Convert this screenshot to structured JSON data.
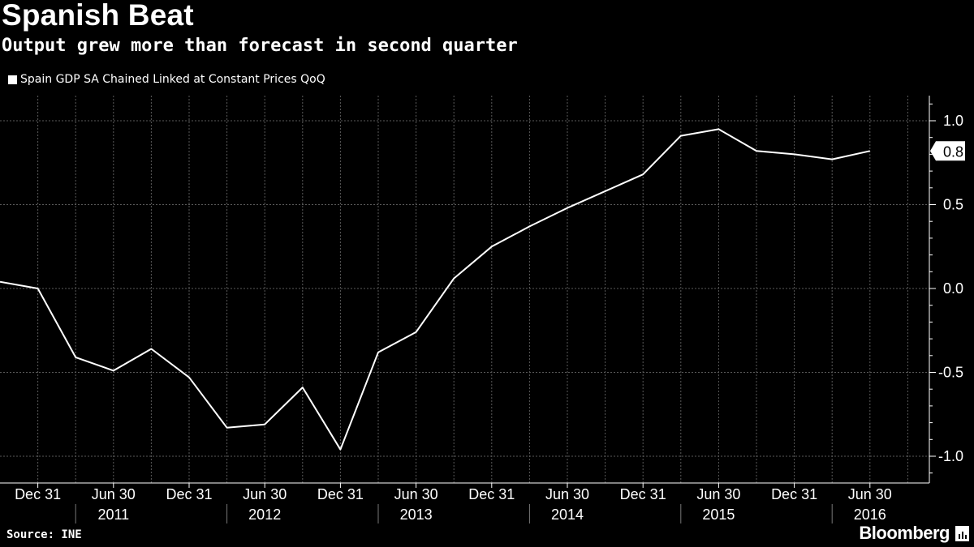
{
  "header": {
    "title": "Spanish Beat",
    "subtitle": "Output grew more than forecast in second quarter"
  },
  "legend": {
    "label": "Spain GDP SA Chained Linked at Constant Prices QoQ"
  },
  "footer": {
    "source": "Source: INE",
    "brand": "Bloomberg"
  },
  "colors": {
    "background": "#000000",
    "line": "#ffffff",
    "grid": "#5a5a5a"
  },
  "chart_data": {
    "type": "line",
    "grid": true,
    "legend_position": "top-left",
    "ylim": [
      -1.15,
      1.15
    ],
    "y_ticks": [
      1.0,
      0.5,
      0.0,
      -0.5,
      -1.0
    ],
    "y_tick_labels": [
      "1.0",
      "0.5",
      "0.0",
      "-0.5",
      "-1.0"
    ],
    "x_tick_labels": [
      "Dec 31",
      "Jun 30",
      "Dec 31",
      "Jun 30",
      "Dec 31",
      "Jun 30",
      "Dec 31",
      "Jun 30",
      "Dec 31",
      "Jun 30",
      "Dec 31",
      "Jun 30"
    ],
    "year_labels": [
      "2011",
      "2012",
      "2013",
      "2014",
      "2015",
      "2016"
    ],
    "last_value_label": "0.8",
    "series": [
      {
        "name": "Spain GDP SA Chained Linked at Constant Prices QoQ",
        "x": [
          "2010-09-30",
          "2010-12-31",
          "2011-03-31",
          "2011-06-30",
          "2011-09-30",
          "2011-12-31",
          "2012-03-31",
          "2012-06-30",
          "2012-09-30",
          "2012-12-31",
          "2013-03-31",
          "2013-06-30",
          "2013-09-30",
          "2013-12-31",
          "2014-03-31",
          "2014-06-30",
          "2014-09-30",
          "2014-12-31",
          "2015-03-31",
          "2015-06-30",
          "2015-09-30",
          "2015-12-31",
          "2016-03-31",
          "2016-06-30"
        ],
        "values": [
          0.04,
          0.0,
          -0.41,
          -0.49,
          -0.36,
          -0.53,
          -0.83,
          -0.81,
          -0.59,
          -0.96,
          -0.38,
          -0.26,
          0.06,
          0.25,
          0.37,
          0.48,
          0.58,
          0.68,
          0.91,
          0.95,
          0.82,
          0.8,
          0.77,
          0.82
        ]
      }
    ]
  }
}
